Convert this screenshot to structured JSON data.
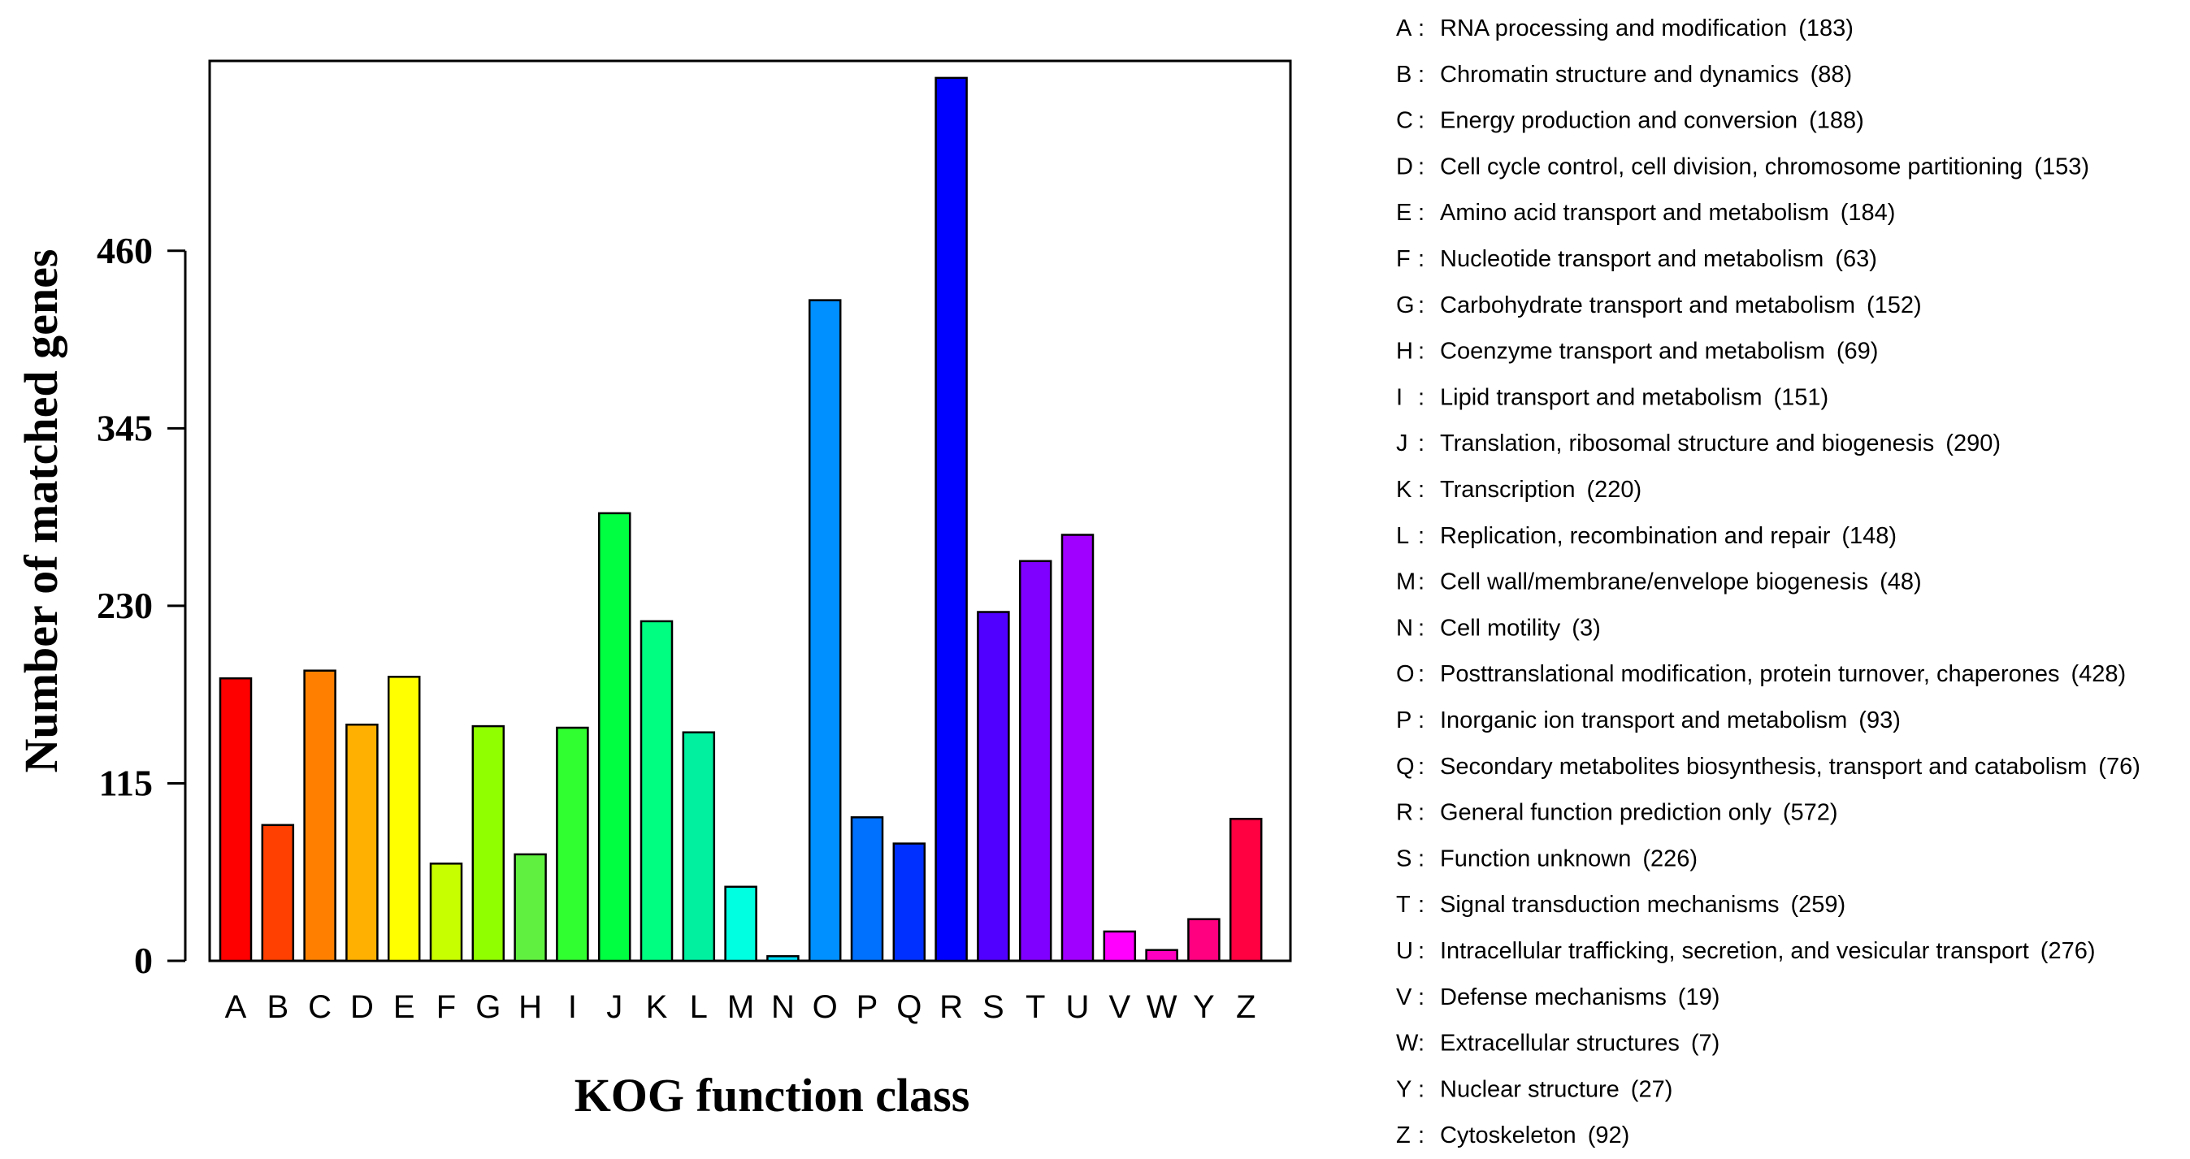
{
  "chart_data": {
    "type": "bar",
    "xlabel": "KOG function class",
    "ylabel": "Number of matched genes",
    "ylim": [
      0,
      583
    ],
    "yticks": [
      0,
      115,
      230,
      345,
      460
    ],
    "grid": false,
    "legend_position": "right",
    "categories": [
      "A",
      "B",
      "C",
      "D",
      "E",
      "F",
      "G",
      "H",
      "I",
      "J",
      "K",
      "L",
      "M",
      "N",
      "O",
      "P",
      "Q",
      "R",
      "S",
      "T",
      "U",
      "V",
      "W",
      "Y",
      "Z"
    ],
    "values": [
      183,
      88,
      188,
      153,
      184,
      63,
      152,
      69,
      151,
      290,
      220,
      148,
      48,
      3,
      428,
      93,
      76,
      572,
      226,
      259,
      276,
      19,
      7,
      27,
      92
    ],
    "colors": [
      "#FF0000",
      "#FF4000",
      "#FF8000",
      "#FFB000",
      "#FFFF00",
      "#C8FF00",
      "#90FF00",
      "#60F040",
      "#30FF30",
      "#00FF40",
      "#00FF80",
      "#00F0A0",
      "#00FFE0",
      "#00E0FF",
      "#0090FF",
      "#0070FF",
      "#0030FF",
      "#0000FF",
      "#5000FF",
      "#8000FF",
      "#A000FF",
      "#FF00FF",
      "#FF00C0",
      "#FF0080",
      "#FF0040"
    ],
    "legend": [
      {
        "code": "A",
        "label": "RNA processing and modification",
        "count": "(183)"
      },
      {
        "code": "B",
        "label": "Chromatin structure and dynamics",
        "count": "(88)"
      },
      {
        "code": "C",
        "label": "Energy production and conversion",
        "count": "(188)"
      },
      {
        "code": "D",
        "label": "Cell cycle control, cell division, chromosome partitioning",
        "count": "(153)"
      },
      {
        "code": "E",
        "label": "Amino acid transport and metabolism",
        "count": "(184)"
      },
      {
        "code": "F",
        "label": "Nucleotide transport and metabolism",
        "count": "(63)"
      },
      {
        "code": "G",
        "label": "Carbohydrate transport and metabolism",
        "count": "(152)"
      },
      {
        "code": "H",
        "label": "Coenzyme transport and metabolism",
        "count": "(69)"
      },
      {
        "code": "I",
        "label": "Lipid transport and metabolism",
        "count": "(151)"
      },
      {
        "code": "J",
        "label": "Translation, ribosomal structure and biogenesis",
        "count": "(290)"
      },
      {
        "code": "K",
        "label": "Transcription",
        "count": "(220)"
      },
      {
        "code": "L",
        "label": "Replication, recombination and repair",
        "count": "(148)"
      },
      {
        "code": "M",
        "label": "Cell wall/membrane/envelope biogenesis",
        "count": "(48)"
      },
      {
        "code": "N",
        "label": "Cell motility",
        "count": "(3)"
      },
      {
        "code": "O",
        "label": "Posttranslational modification, protein turnover, chaperones",
        "count": "(428)"
      },
      {
        "code": "P",
        "label": "Inorganic ion transport and metabolism",
        "count": "(93)"
      },
      {
        "code": "Q",
        "label": "Secondary metabolites biosynthesis, transport and catabolism",
        "count": "(76)"
      },
      {
        "code": "R",
        "label": "General function prediction only",
        "count": "(572)"
      },
      {
        "code": "S",
        "label": "Function unknown",
        "count": "(226)"
      },
      {
        "code": "T",
        "label": "Signal transduction mechanisms",
        "count": "(259)"
      },
      {
        "code": "U",
        "label": "Intracellular trafficking, secretion, and vesicular transport",
        "count": "(276)"
      },
      {
        "code": "V",
        "label": "Defense mechanisms",
        "count": "(19)"
      },
      {
        "code": "W",
        "label": "Extracellular structures",
        "count": "(7)"
      },
      {
        "code": "Y",
        "label": "Nuclear structure",
        "count": "(27)"
      },
      {
        "code": "Z",
        "label": "Cytoskeleton",
        "count": "(92)"
      }
    ]
  }
}
